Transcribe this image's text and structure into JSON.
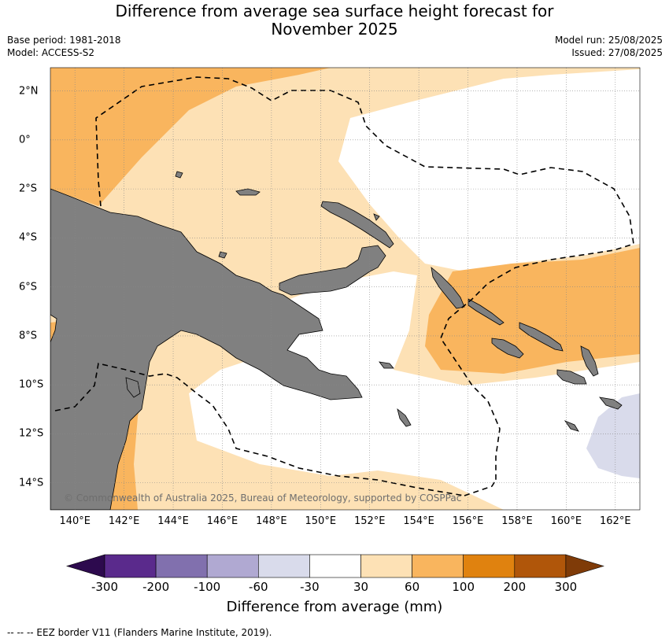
{
  "title_line1": "Difference from average sea surface height forecast for",
  "title_line2": "November 2025",
  "base_period": "Base period: 1981-2018",
  "model": "Model: ACCESS-S2",
  "model_run": "Model run: 25/08/2025",
  "issued": "Issued: 27/08/2025",
  "credit": "© Commonwealth of Australia 2025, Bureau of Meteorology, supported by COSPPac",
  "lat_labels": [
    "2°N",
    "0°",
    "2°S",
    "4°S",
    "6°S",
    "8°S",
    "10°S",
    "12°S",
    "14°S"
  ],
  "lon_labels": [
    "140°E",
    "142°E",
    "144°E",
    "146°E",
    "148°E",
    "150°E",
    "152°E",
    "154°E",
    "156°E",
    "158°E",
    "160°E",
    "162°E"
  ],
  "colorbar": {
    "title": "Difference from average (mm)",
    "ticks": [
      "-300",
      "-200",
      "-100",
      "-60",
      "-30",
      "30",
      "60",
      "100",
      "200",
      "300"
    ],
    "colors": [
      "#2d0a4e",
      "#5a2a8c",
      "#8170ae",
      "#b0a9d2",
      "#d9dbeb",
      "#ffffff",
      "#fde1b5",
      "#f9b55e",
      "#e0820f",
      "#b0560a",
      "#7f3b08"
    ]
  },
  "colors": {
    "land": "#808080",
    "grid": "#888888"
  },
  "footnote": "--  --  -- EEZ border V11 (Flanders Marine Institute, 2019)."
}
